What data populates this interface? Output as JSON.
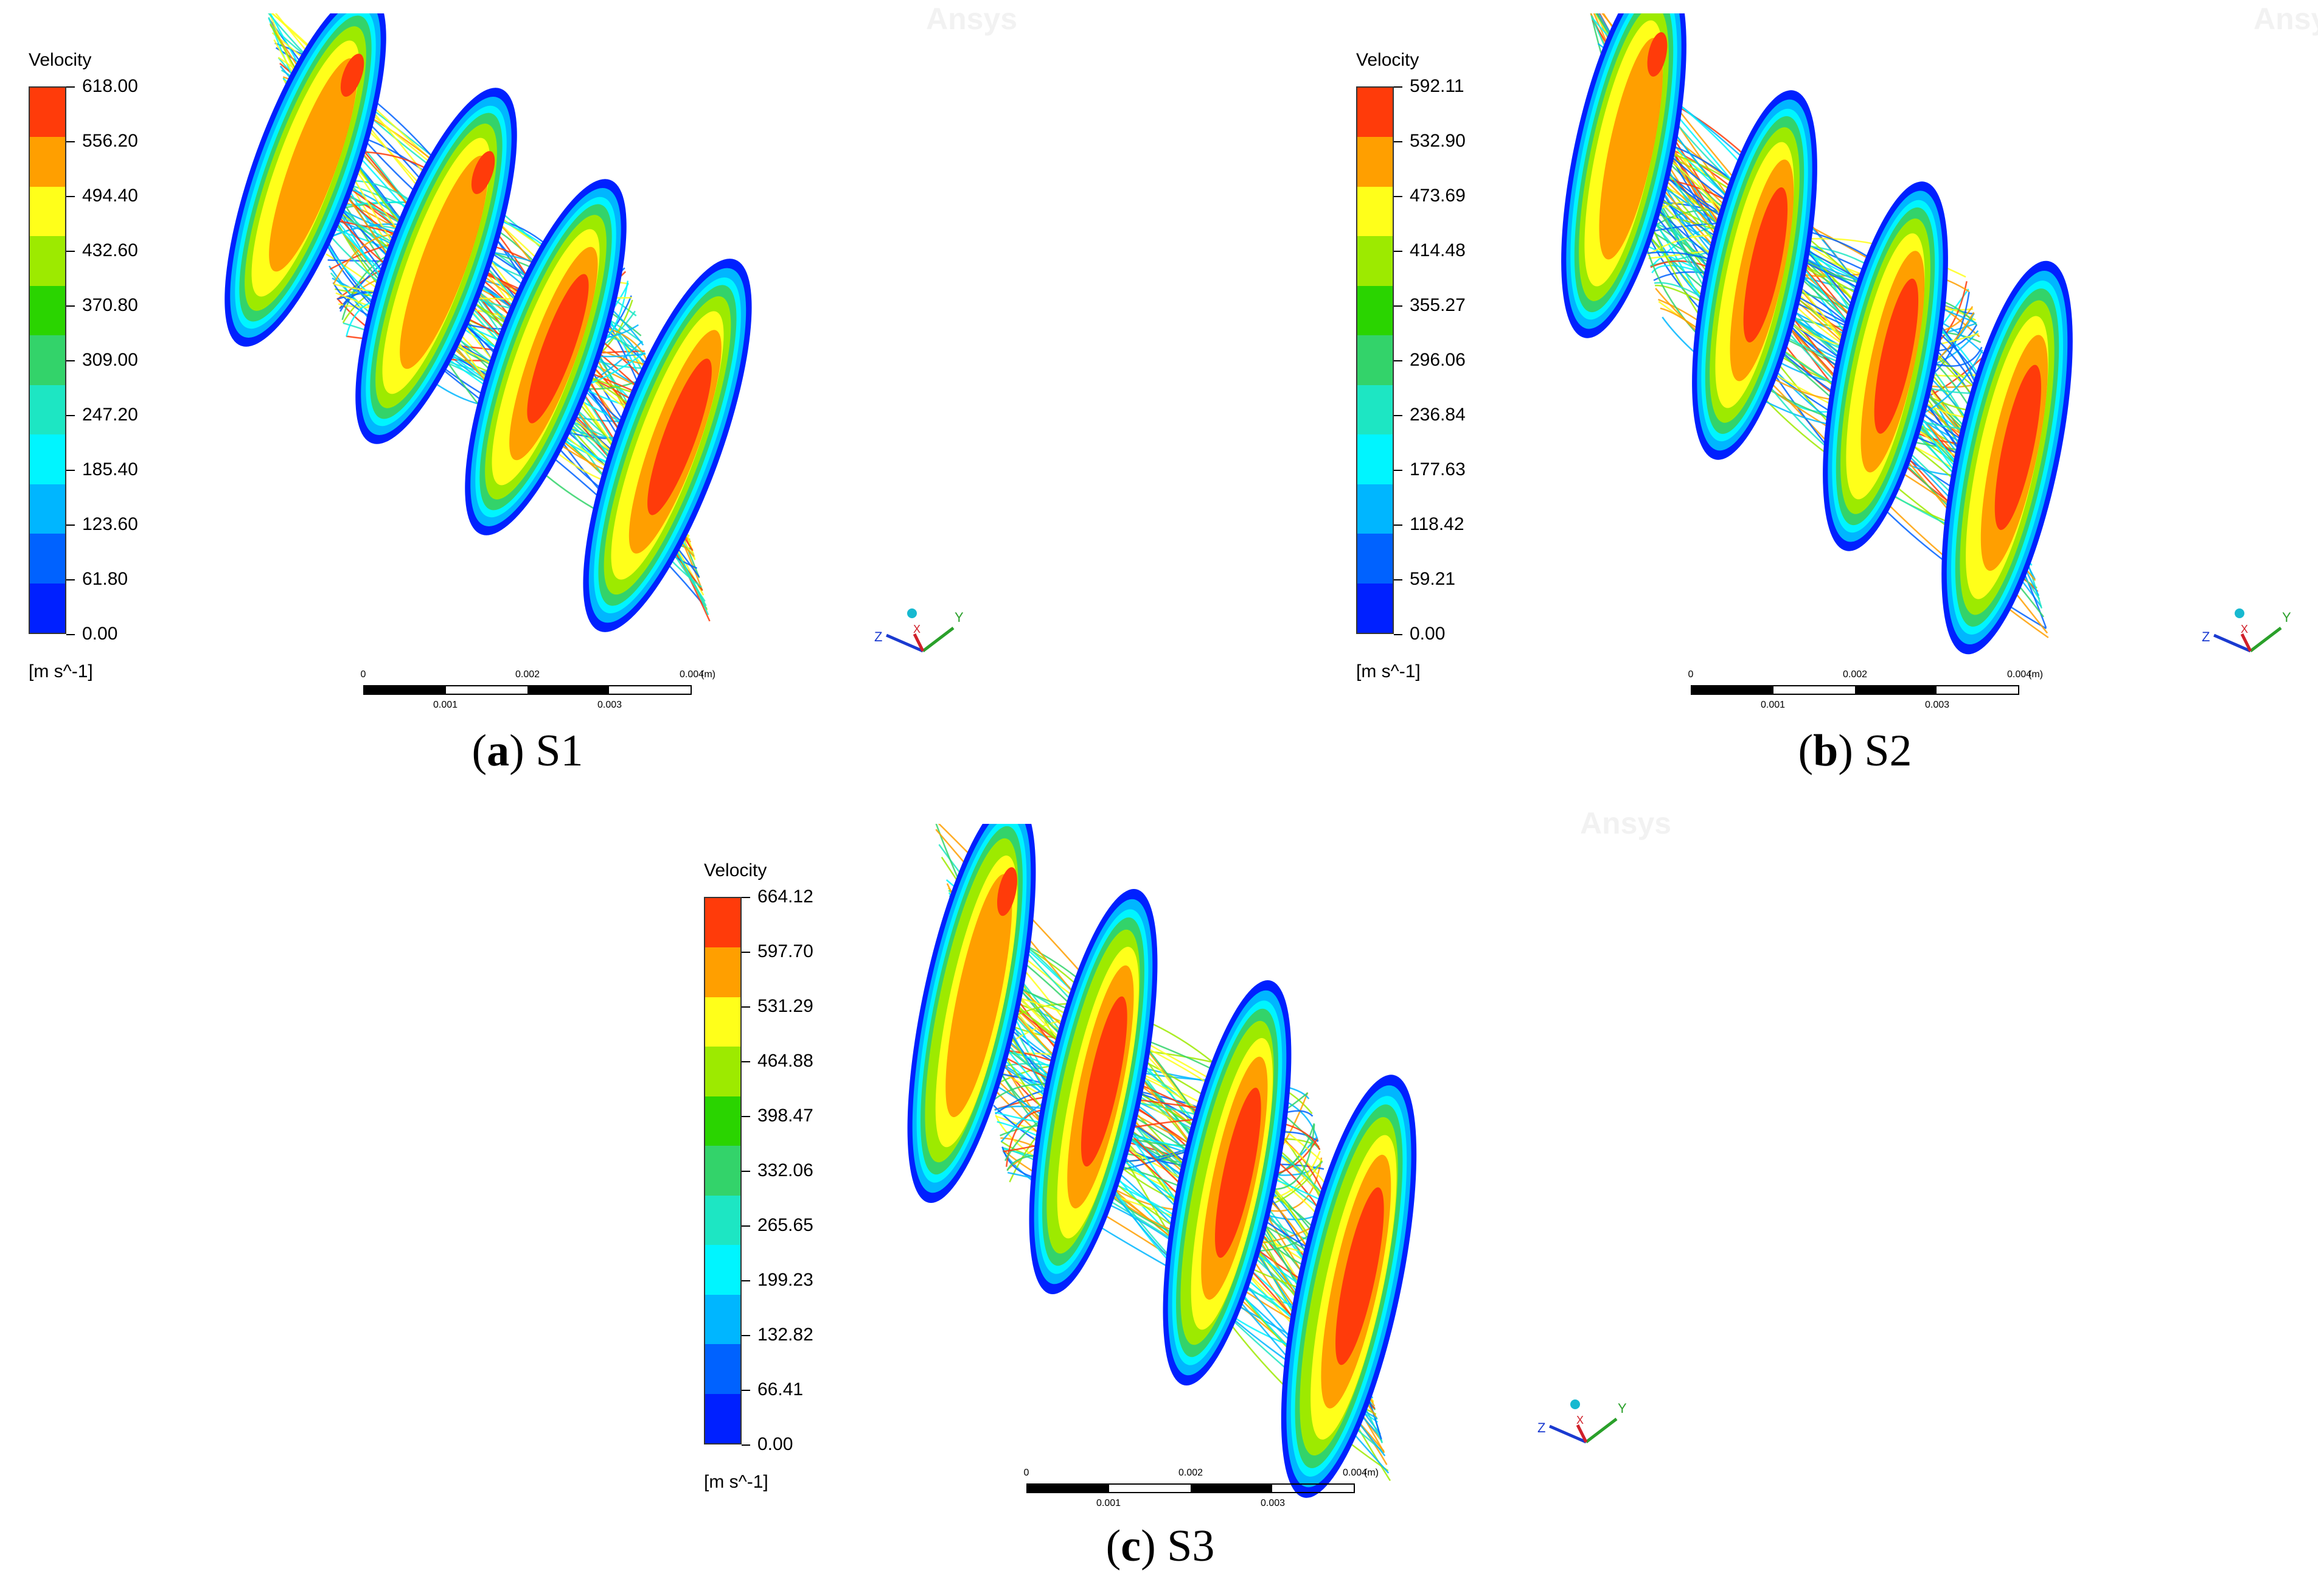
{
  "panels": [
    {
      "caption_letter": "a",
      "caption_label": "S1",
      "legend": {
        "title": "Velocity",
        "units": "[m s^-1]",
        "ticks": [
          "618.00",
          "556.20",
          "494.40",
          "432.60",
          "370.80",
          "309.00",
          "247.20",
          "185.40",
          "123.60",
          "61.80",
          "0.00"
        ]
      },
      "scale": {
        "top": [
          "0",
          "0.002",
          "0.004"
        ],
        "bottom": [
          "0.001",
          "0.003"
        ],
        "unit": "(m)"
      },
      "watermark": "Ansys",
      "axes": {
        "x": "X",
        "y": "Y",
        "z": "Z"
      }
    },
    {
      "caption_letter": "b",
      "caption_label": "S2",
      "legend": {
        "title": "Velocity",
        "units": "[m s^-1]",
        "ticks": [
          "592.11",
          "532.90",
          "473.69",
          "414.48",
          "355.27",
          "296.06",
          "236.84",
          "177.63",
          "118.42",
          "59.21",
          "0.00"
        ]
      },
      "scale": {
        "top": [
          "0",
          "0.002",
          "0.004"
        ],
        "bottom": [
          "0.001",
          "0.003"
        ],
        "unit": "(m)"
      },
      "watermark": "Ansys",
      "axes": {
        "x": "X",
        "y": "Y",
        "z": "Z"
      }
    },
    {
      "caption_letter": "c",
      "caption_label": "S3",
      "legend": {
        "title": "Velocity",
        "units": "[m s^-1]",
        "ticks": [
          "664.12",
          "597.70",
          "531.29",
          "464.88",
          "398.47",
          "332.06",
          "265.65",
          "199.23",
          "132.82",
          "66.41",
          "0.00"
        ]
      },
      "scale": {
        "top": [
          "0",
          "0.002",
          "0.004"
        ],
        "bottom": [
          "0.001",
          "0.003"
        ],
        "unit": "(m)"
      },
      "watermark": "Ansys",
      "axes": {
        "x": "X",
        "y": "Y",
        "z": "Z"
      }
    }
  ],
  "colormap": [
    "#ff3b0a",
    "#ff9f00",
    "#ffff1a",
    "#9dea00",
    "#2ad400",
    "#33d36a",
    "#1de6c3",
    "#00f5ff",
    "#00b6ff",
    "#0062ff",
    "#0020ff"
  ]
}
